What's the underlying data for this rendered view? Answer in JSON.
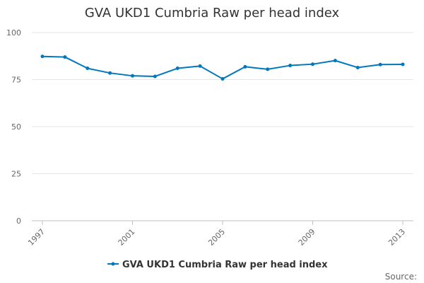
{
  "chart_data": {
    "type": "line",
    "title": "GVA UKD1 Cumbria Raw per head index",
    "xlabel": "",
    "ylabel": "",
    "x": [
      1997,
      1998,
      1999,
      2000,
      2001,
      2002,
      2003,
      2004,
      2005,
      2006,
      2007,
      2008,
      2009,
      2010,
      2011,
      2012,
      2013
    ],
    "x_ticks": [
      "1997",
      "2001",
      "2005",
      "2009",
      "2013"
    ],
    "y_ticks": [
      "0",
      "25",
      "50",
      "75",
      "100"
    ],
    "ylim": [
      0,
      100
    ],
    "grid": true,
    "legend_position": "bottom",
    "series": [
      {
        "name": "GVA UKD1 Cumbria Raw per head index",
        "color": "#0077be",
        "values": [
          87.3,
          87.0,
          81.0,
          78.5,
          77.0,
          76.7,
          81.0,
          82.2,
          75.4,
          81.8,
          80.5,
          82.5,
          83.2,
          85.1,
          81.4,
          83.0,
          83.1
        ]
      }
    ],
    "credits": "Source:"
  }
}
